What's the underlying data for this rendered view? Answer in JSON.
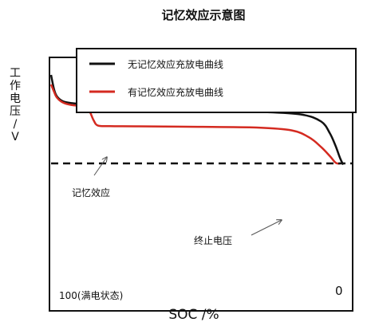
{
  "chart_data": {
    "type": "line",
    "title": "记忆效应示意图",
    "xlabel": "SOC /%",
    "ylabel_chars": [
      "工",
      "作",
      "电",
      "压",
      "/",
      "V"
    ],
    "x_ticks": [
      {
        "x": 100,
        "label": "100(满电状态)"
      },
      {
        "x": 0,
        "label": "0"
      }
    ],
    "xlim": [
      100,
      0
    ],
    "ylim": [
      0,
      100
    ],
    "cutoff_voltage": 45,
    "series": [
      {
        "name": "无记忆效应充放电曲线",
        "color": "#111111",
        "points": [
          [
            100,
            82
          ],
          [
            99,
            76
          ],
          [
            98,
            73
          ],
          [
            96,
            71
          ],
          [
            93,
            70.2
          ],
          [
            85,
            69.3
          ],
          [
            70,
            68.2
          ],
          [
            50,
            67.3
          ],
          [
            30,
            66.6
          ],
          [
            15,
            65.5
          ],
          [
            8,
            62.5
          ],
          [
            5,
            57.5
          ],
          [
            3,
            52
          ],
          [
            1.5,
            47
          ],
          [
            0.5,
            44.5
          ]
        ]
      },
      {
        "name": "有记忆效应充放电曲线",
        "color": "#d42a20",
        "points": [
          [
            100,
            78
          ],
          [
            99,
            75
          ],
          [
            98,
            72.5
          ],
          [
            96,
            70.5
          ],
          [
            93,
            69.4
          ],
          [
            89,
            68.9
          ],
          [
            87,
            67
          ],
          [
            85.5,
            63
          ],
          [
            84,
            60.8
          ],
          [
            80,
            60.6
          ],
          [
            70,
            60.5
          ],
          [
            50,
            60.3
          ],
          [
            30,
            60
          ],
          [
            18,
            58.8
          ],
          [
            12,
            55.8
          ],
          [
            8,
            51.8
          ],
          [
            5,
            48
          ],
          [
            3,
            45.2
          ],
          [
            1.5,
            45
          ]
        ]
      }
    ],
    "annotations": [
      {
        "text": "记忆效应",
        "points_to": [
          87,
          62
        ]
      },
      {
        "text": "终止电压",
        "points_to": [
          24,
          45
        ]
      }
    ],
    "legend": "top"
  },
  "colors": {
    "no_memory": "#111111",
    "memory": "#d42a20",
    "cutoff": "#111111"
  }
}
